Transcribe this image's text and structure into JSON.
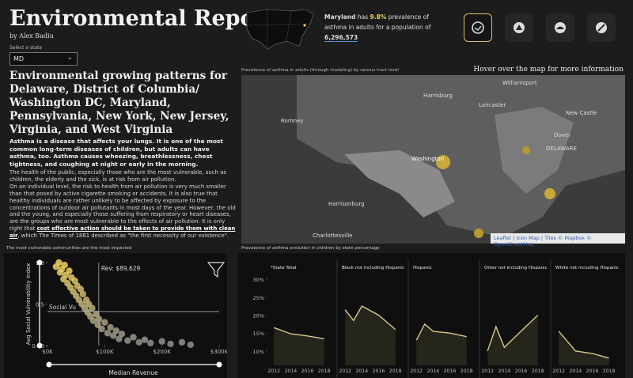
{
  "header": {
    "title": "Environmental Report",
    "author": "by Alex Badiu",
    "select_label": "Select a state",
    "selected": "MD"
  },
  "intro": {
    "heading": "Environmental growing patterns for Delaware, District of Columbia/ Washington DC, Maryland, Pennsylvania, New York, New Jersey, Virginia, and West Virginia",
    "lead": "Asthma is a disease that affects your lungs. It is one of the most common long-term diseases of children, but adults can have asthma, too. Asthma causes wheezing, breathlessness, chest tightness, and coughing at night or early in the morning.",
    "paragraph1": "The health of the public, especially those who are the most vulnerable, such as children, the elderly and the sick, is at risk from air pollution.",
    "paragraph2_start": "On an individual level, the risk to health from air pollution is very much smaller than that posed by active cigarette smoking or accidents. It is also true that healthy individuals are rather unlikely to be affected by exposure to the concentrations of outdoor air pollutants in most days of the year. However, the old and the young, and especially those suffering from respiratory or heart diseases, are the groups who are most vulnerable to the effects of air pollution. It is only right that ",
    "paragraph2_emphasis": "cost effective action should be taken to provide them with clean air",
    "paragraph2_end": ", which The Times of 1881 described as \"the first necessity of our existence\"."
  },
  "summary": {
    "state": "Maryland",
    "text1": "has",
    "rate": "9.8%",
    "text2": "prevalence of asthma in adults for a population of",
    "population": "6,296,573"
  },
  "map": {
    "title": "Prevalence of asthma in adults (through modeling) by census tract level",
    "hint": "Hover over the map for more information",
    "labels": [
      "Williamsport",
      "Harrisburg",
      "Lancaster",
      "Romney",
      "Washington",
      "Harrisonburg",
      "Charlottesville",
      "Dover",
      "DELAWARE",
      "New Castle"
    ],
    "attribution": "Leaflet | Icon Map | Tiles © Mapbox © OpenStreetMap"
  },
  "chart_data": [
    {
      "type": "scatter",
      "title": "The most vulnerable communities are the most impacted",
      "x_label": "Median Revenue",
      "y_label": "Avg Social Vulnerability Index",
      "x": [
        15000,
        20000,
        22000,
        25000,
        28000,
        30000,
        32000,
        35000,
        38000,
        40000,
        42000,
        45000,
        48000,
        50000,
        52000,
        55000,
        58000,
        60000,
        62000,
        65000,
        68000,
        70000,
        72000,
        75000,
        78000,
        80000,
        85000,
        88000,
        90000,
        95000,
        100000,
        105000,
        110000,
        115000,
        120000,
        125000,
        130000,
        140000,
        150000,
        160000,
        170000,
        180000,
        200000,
        215000,
        235000,
        250000
      ],
      "values": [
        0.95,
        1.0,
        0.88,
        0.92,
        0.8,
        0.97,
        0.85,
        0.75,
        0.9,
        0.7,
        0.82,
        0.65,
        0.78,
        0.6,
        0.72,
        0.55,
        0.68,
        0.5,
        0.62,
        0.45,
        0.55,
        0.4,
        0.5,
        0.35,
        0.45,
        0.3,
        0.38,
        0.25,
        0.32,
        0.2,
        0.28,
        0.15,
        0.22,
        0.12,
        0.18,
        0.08,
        0.14,
        0.06,
        0.1,
        0.04,
        0.07,
        0.03,
        0.05,
        0.02,
        0.04,
        0.01
      ],
      "xlim": [
        0,
        300000
      ],
      "xticks": [
        {
          "value": 0,
          "label": "$0K"
        },
        {
          "value": 100000,
          "label": "$100K"
        },
        {
          "value": 200000,
          "label": "$200K"
        },
        {
          "value": 300000,
          "label": "$300K"
        }
      ],
      "ylim": [
        0,
        1
      ],
      "yticks": [
        {
          "value": 0,
          "label": "0.00"
        },
        {
          "value": 0.5,
          "label": "0.5"
        },
        {
          "value": 1,
          "label": "1.0"
        }
      ],
      "color_low": "#8f8f8f",
      "color_high": "#f2d35e",
      "annotations": [
        {
          "axis": "x",
          "value": 89629,
          "label": "Rev: $89,629"
        },
        {
          "axis": "y",
          "value": 0.41,
          "label": "Social Vu"
        }
      ]
    },
    {
      "type": "line",
      "small_multiples": true,
      "title": "Prevalence of asthma evolution in children by state percentage",
      "xlim": [
        2011.6,
        2018.6
      ],
      "xticks": [
        2012,
        2014,
        2016,
        2018
      ],
      "ylim": [
        6,
        32
      ],
      "yticks": [
        {
          "value": 10,
          "label": "10%"
        },
        {
          "value": 15,
          "label": "15%"
        },
        {
          "value": 20,
          "label": "20%"
        },
        {
          "value": 25,
          "label": "25%"
        },
        {
          "value": 30,
          "label": "30%"
        }
      ],
      "series": [
        {
          "name": "*State Total",
          "color": "#d8c98c",
          "x": [
            2012,
            2014,
            2016,
            2018
          ],
          "values": [
            16.5,
            14.8,
            14.2,
            13.4
          ]
        },
        {
          "name": "Black not including Hispanic",
          "color": "#d8c98c",
          "x": [
            2012,
            2013,
            2014,
            2016,
            2018
          ],
          "values": [
            21.5,
            18.5,
            22.5,
            20,
            16
          ]
        },
        {
          "name": "Hispanic",
          "color": "#d8c98c",
          "x": [
            2012,
            2013,
            2014,
            2016,
            2018
          ],
          "values": [
            13,
            17.5,
            15.5,
            15,
            14
          ]
        },
        {
          "name": "Other not including Hispanic",
          "color": "#d8c98c",
          "x": [
            2012,
            2013,
            2014,
            2016,
            2018
          ],
          "values": [
            10,
            16.8,
            11,
            15.5,
            20
          ]
        },
        {
          "name": "White not including Hispanic",
          "color": "#d8c98c",
          "x": [
            2012,
            2014,
            2016,
            2018
          ],
          "values": [
            15.5,
            10,
            9.3,
            8
          ]
        }
      ]
    }
  ]
}
